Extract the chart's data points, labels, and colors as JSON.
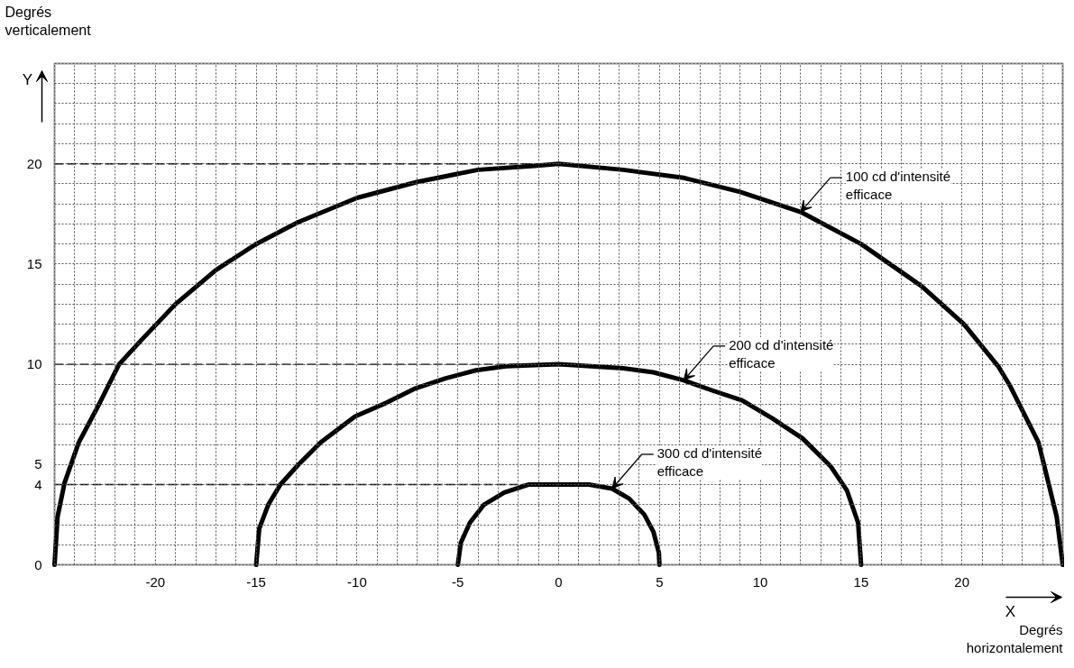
{
  "chart_data": {
    "type": "line",
    "xlabel": "Degrés horizontalement",
    "ylabel": "Degrés verticalement",
    "xlim": [
      -25,
      25
    ],
    "ylim": [
      0,
      25
    ],
    "xticks": [
      {
        "value": -25,
        "label": null
      },
      {
        "value": -24,
        "label": null
      },
      {
        "value": -23,
        "label": null
      },
      {
        "value": -22,
        "label": null
      },
      {
        "value": -21,
        "label": null
      },
      -20,
      {
        "value": -19,
        "label": null
      },
      {
        "value": -18,
        "label": null
      },
      {
        "value": -17,
        "label": null
      },
      {
        "value": -16,
        "label": null
      },
      -15,
      {
        "value": -14,
        "label": null
      },
      {
        "value": -13,
        "label": null
      },
      {
        "value": -12,
        "label": null
      },
      {
        "value": -11,
        "label": null
      },
      -10,
      {
        "value": -9,
        "label": null
      },
      {
        "value": -8,
        "label": null
      },
      {
        "value": -7,
        "label": null
      },
      {
        "value": -6,
        "label": null
      },
      -5,
      {
        "value": -4,
        "label": null
      },
      {
        "value": -3,
        "label": null
      },
      {
        "value": -2,
        "label": null
      },
      {
        "value": -1,
        "label": null
      },
      0,
      {
        "value": 1,
        "label": null
      },
      {
        "value": 2,
        "label": null
      },
      {
        "value": 3,
        "label": null
      },
      {
        "value": 4,
        "label": null
      },
      5,
      {
        "value": 6,
        "label": null
      },
      {
        "value": 7,
        "label": null
      },
      {
        "value": 8,
        "label": null
      },
      {
        "value": 9,
        "label": null
      },
      10,
      {
        "value": 11,
        "label": null
      },
      {
        "value": 12,
        "label": null
      },
      {
        "value": 13,
        "label": null
      },
      {
        "value": 14,
        "label": null
      },
      15,
      {
        "value": 16,
        "label": null
      },
      {
        "value": 17,
        "label": null
      },
      {
        "value": 18,
        "label": null
      },
      {
        "value": 19,
        "label": null
      },
      20,
      {
        "value": 21,
        "label": null
      },
      {
        "value": 22,
        "label": null
      },
      {
        "value": 23,
        "label": null
      },
      {
        "value": 24,
        "label": null
      },
      {
        "value": 25,
        "label": null
      }
    ],
    "yticks": [
      0,
      {
        "value": 1,
        "label": null
      },
      {
        "value": 2,
        "label": null
      },
      {
        "value": 3,
        "label": null
      },
      4,
      5,
      {
        "value": 6,
        "label": null
      },
      {
        "value": 7,
        "label": null
      },
      {
        "value": 8,
        "label": null
      },
      {
        "value": 9,
        "label": null
      },
      10,
      {
        "value": 11,
        "label": null
      },
      {
        "value": 12,
        "label": null
      },
      {
        "value": 13,
        "label": null
      },
      {
        "value": 14,
        "label": null
      },
      15,
      {
        "value": 16,
        "label": null
      },
      {
        "value": 17,
        "label": null
      },
      {
        "value": 18,
        "label": null
      },
      {
        "value": 19,
        "label": null
      },
      20,
      {
        "value": 21,
        "label": null
      },
      {
        "value": 22,
        "label": null
      },
      {
        "value": 23,
        "label": null
      },
      {
        "value": 24,
        "label": null
      },
      {
        "value": 25,
        "label": null
      }
    ],
    "grid": true,
    "series": [
      {
        "color": "#000000",
        "x": [
          -25,
          -24.85,
          -24.5,
          -23.8,
          -22.9,
          -21.8,
          -20.7,
          -19,
          -17,
          -15,
          -12.9,
          -10,
          -7,
          -4,
          -1.2,
          0,
          3.2,
          6.2,
          9,
          12,
          15,
          18,
          20.1,
          21.8,
          22.4,
          23.8,
          24.7,
          25
        ],
        "values": [
          0,
          2.4,
          4.1,
          6.1,
          7.8,
          10.0,
          11.2,
          13.0,
          14.7,
          16.0,
          17.1,
          18.3,
          19.1,
          19.7,
          19.9,
          20,
          19.7,
          19.3,
          18.6,
          17.6,
          16.0,
          13.9,
          12.0,
          9.9,
          8.9,
          6.1,
          2.4,
          0
        ]
      },
      {
        "color": "#000000",
        "x": [
          -15,
          -14.85,
          -14.4,
          -13.8,
          -12.9,
          -11.8,
          -10.1,
          -8.5,
          -7.1,
          -5.6,
          -4.1,
          -2.6,
          0,
          3.2,
          4.7,
          6.2,
          7.6,
          9.1,
          10.6,
          12.1,
          13.5,
          14.3,
          14.85,
          15
        ],
        "values": [
          0,
          1.8,
          3.0,
          4.0,
          5.0,
          6.1,
          7.4,
          8.1,
          8.8,
          9.3,
          9.7,
          9.9,
          10,
          9.8,
          9.6,
          9.2,
          8.7,
          8.2,
          7.3,
          6.3,
          4.9,
          3.7,
          2.1,
          0
        ]
      },
      {
        "color": "#000000",
        "x": [
          -5,
          -4.85,
          -4.4,
          -3.7,
          -2.7,
          -1.5,
          0,
          1.5,
          2.65,
          3.5,
          4.25,
          4.7,
          4.97,
          5
        ],
        "values": [
          0,
          1.1,
          2.1,
          3.0,
          3.6,
          4.0,
          4,
          4.0,
          3.8,
          3.3,
          2.5,
          1.65,
          0.6,
          0
        ]
      }
    ],
    "ref_lines": [
      {
        "axis": "y",
        "value": 20,
        "color": "#000000",
        "line_style": "dashed"
      },
      {
        "axis": "y",
        "value": 10,
        "color": "#000000",
        "line_style": "dashed"
      },
      {
        "axis": "y",
        "value": 4,
        "color": "#000000",
        "line_style": "dashed"
      }
    ],
    "annotations": [
      "Y",
      "X",
      {
        "text": "100 cd d'intensité efficace",
        "x": 12,
        "y": 17.6
      },
      {
        "text": "200 cd d'intensité efficace",
        "x": 6.2,
        "y": 9.2
      },
      {
        "text": "300 cd d'intensité efficace",
        "x": 2.65,
        "y": 3.8
      }
    ]
  }
}
